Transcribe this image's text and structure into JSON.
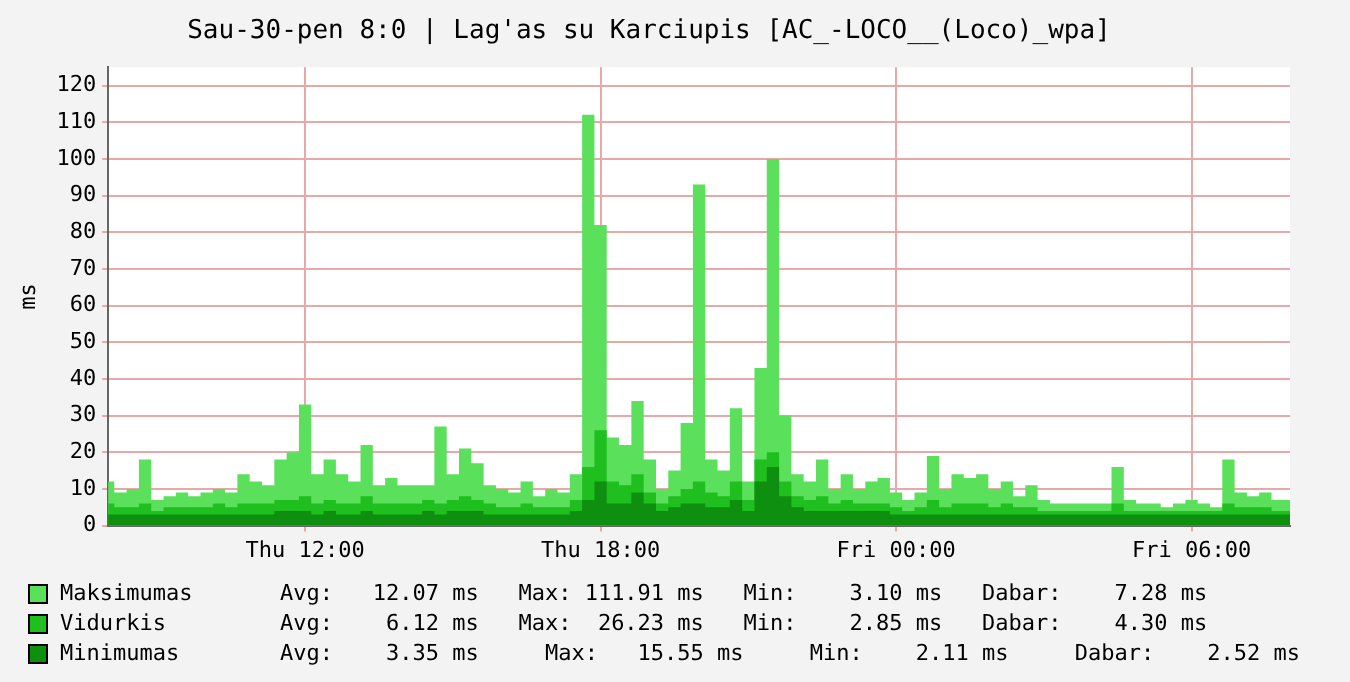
{
  "chart_data": {
    "type": "area",
    "title": "Sau-30-pen 8:0 | Lag'as su Karciupis [AC_-LOCO__(Loco)_wpa]",
    "ylabel": "ms",
    "categories": [
      null,
      null,
      null,
      null,
      null,
      null,
      null,
      null,
      null,
      null,
      null,
      null,
      null,
      null,
      null,
      null,
      "Thu 12:00",
      null,
      null,
      null,
      null,
      null,
      null,
      null,
      null,
      null,
      null,
      null,
      null,
      null,
      null,
      null,
      null,
      null,
      null,
      null,
      null,
      null,
      null,
      null,
      "Thu 18:00",
      null,
      null,
      null,
      null,
      null,
      null,
      null,
      null,
      null,
      null,
      null,
      null,
      null,
      null,
      null,
      null,
      null,
      null,
      null,
      null,
      null,
      null,
      null,
      "Fri 00:00",
      null,
      null,
      null,
      null,
      null,
      null,
      null,
      null,
      null,
      null,
      null,
      null,
      null,
      null,
      null,
      null,
      null,
      null,
      null,
      null,
      null,
      null,
      null,
      "Fri 06:00",
      null,
      null,
      null,
      null,
      null,
      null,
      null,
      null
    ],
    "series": [
      {
        "name": "Maksimumas",
        "color": "#5be05b",
        "values": [
          12,
          9,
          10,
          18,
          7,
          8,
          9,
          8,
          9,
          10,
          9,
          14,
          12,
          11,
          18,
          20,
          33,
          14,
          18,
          14,
          12,
          22,
          11,
          13,
          11,
          11,
          11,
          27,
          14,
          21,
          17,
          11,
          10,
          9,
          12,
          8,
          10,
          9,
          14,
          112,
          82,
          24,
          22,
          34,
          18,
          10,
          15,
          28,
          93,
          18,
          15,
          32,
          12,
          43,
          100,
          30,
          14,
          12,
          18,
          10,
          14,
          10,
          12,
          13,
          9,
          7,
          9,
          19,
          10,
          14,
          13,
          14,
          10,
          12,
          8,
          11,
          7,
          6,
          6,
          6,
          6,
          6,
          16,
          7,
          6,
          6,
          5,
          6,
          7,
          6,
          5,
          18,
          9,
          8,
          9,
          7,
          7
        ]
      },
      {
        "name": "Vidurkis",
        "color": "#1fbf1f",
        "values": [
          6,
          5,
          5,
          6,
          4,
          5,
          5,
          5,
          5,
          6,
          5,
          6,
          6,
          6,
          7,
          7,
          8,
          6,
          7,
          6,
          6,
          8,
          6,
          6,
          6,
          6,
          7,
          6,
          7,
          8,
          7,
          6,
          5,
          5,
          6,
          5,
          5,
          5,
          7,
          16,
          26,
          12,
          11,
          14,
          9,
          6,
          8,
          10,
          12,
          9,
          8,
          12,
          7,
          18,
          20,
          12,
          8,
          7,
          8,
          6,
          7,
          6,
          6,
          6,
          5,
          4,
          5,
          7,
          5,
          6,
          6,
          6,
          5,
          6,
          5,
          5,
          4,
          4,
          4,
          4,
          4,
          4,
          6,
          4,
          4,
          4,
          4,
          4,
          4,
          4,
          4,
          6,
          5,
          5,
          5,
          4,
          4
        ]
      },
      {
        "name": "Minimumas",
        "color": "#0f8f0f",
        "values": [
          3,
          3,
          3,
          3,
          3,
          3,
          3,
          3,
          3,
          3,
          3,
          3,
          3,
          3,
          4,
          4,
          4,
          3,
          4,
          3,
          3,
          4,
          3,
          3,
          3,
          3,
          4,
          3,
          4,
          4,
          4,
          3,
          3,
          3,
          3,
          3,
          3,
          3,
          4,
          7,
          12,
          6,
          6,
          9,
          6,
          4,
          5,
          6,
          6,
          5,
          5,
          7,
          4,
          12,
          16,
          8,
          5,
          4,
          4,
          4,
          4,
          4,
          4,
          4,
          3,
          3,
          3,
          3,
          3,
          3,
          3,
          3,
          3,
          3,
          3,
          3,
          3,
          3,
          3,
          3,
          3,
          3,
          3,
          3,
          3,
          3,
          3,
          3,
          3,
          3,
          3,
          3,
          3,
          3,
          3,
          3,
          3
        ]
      }
    ],
    "ylim": [
      0,
      125
    ],
    "yticks": [
      0,
      10,
      20,
      30,
      40,
      50,
      60,
      70,
      80,
      90,
      100,
      110,
      120
    ],
    "grid": true,
    "legend": "bottom",
    "annotations": [
      "Avg:   12.07 ms   Max: 111.91 ms   Min:    3.10 ms   Dabar:    7.28 ms",
      "Avg:    6.12 ms   Max:  26.23 ms   Min:    2.85 ms   Dabar:    4.30 ms",
      "Avg:    3.35 ms     Max:   15.55 ms     Min:    2.11 ms     Dabar:    2.52 ms"
    ]
  }
}
